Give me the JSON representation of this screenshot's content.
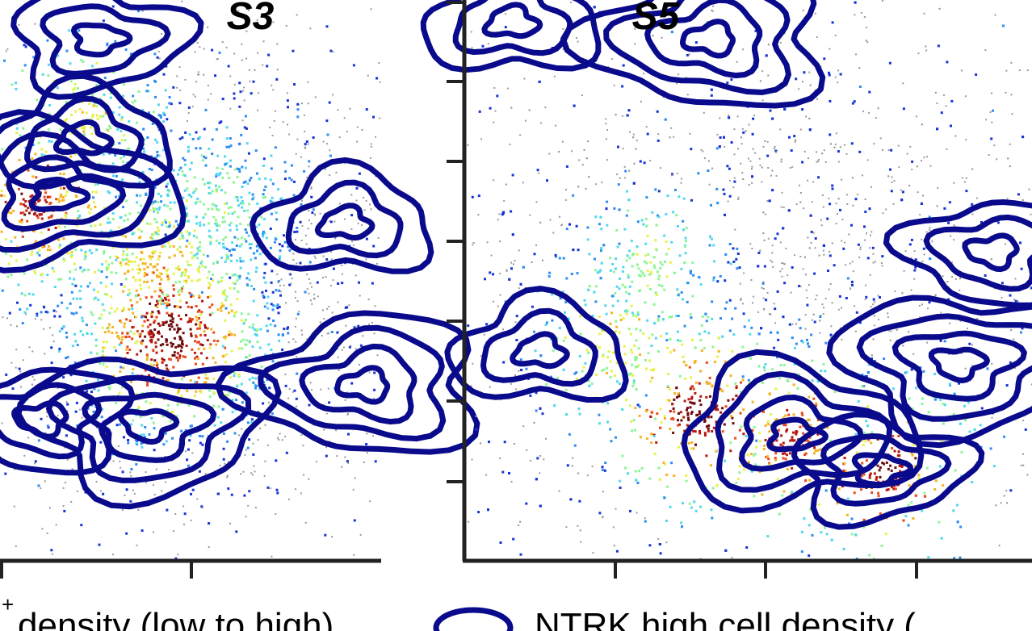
{
  "colors": {
    "background": "#ffffff",
    "axis": "#222222",
    "contour": "#0a0a8c",
    "non_expressing_cells": "#9a9a9a",
    "density_colormap": [
      "#1733d6",
      "#2f8cf0",
      "#52d8ee",
      "#8ef596",
      "#e6f24a",
      "#f5b321",
      "#e94a1b",
      "#b8170f",
      "#6e0b0b"
    ]
  },
  "chart_data": [
    {
      "type": "scatter",
      "title": "S3",
      "subtitle": "",
      "xlabel": "",
      "ylabel": "",
      "grid": false,
      "legend": "bottom",
      "overlay": "kernel density contours",
      "xlim": [
        0,
        10
      ],
      "ylim": [
        0,
        10
      ],
      "density_hotspots": [
        {
          "x": 4.5,
          "y": 4.0,
          "level": 1.0
        },
        {
          "x": 0.9,
          "y": 6.4,
          "level": 0.85
        },
        {
          "x": 2.1,
          "y": 7.9,
          "level": 0.55
        },
        {
          "x": 4.0,
          "y": 5.2,
          "level": 0.6
        },
        {
          "x": 5.6,
          "y": 6.3,
          "level": 0.4
        }
      ],
      "contour_peaks": [
        {
          "x": 2.2,
          "y": 7.5
        },
        {
          "x": 1.5,
          "y": 6.5
        },
        {
          "x": 2.6,
          "y": 9.3
        },
        {
          "x": 3.9,
          "y": 2.4
        },
        {
          "x": 1.1,
          "y": 2.5
        },
        {
          "x": 9.6,
          "y": 3.1
        },
        {
          "x": 9.1,
          "y": 6.0
        }
      ]
    },
    {
      "type": "scatter",
      "title": "S5",
      "subtitle": "",
      "xlabel": "",
      "ylabel": "",
      "grid": false,
      "legend": "bottom",
      "overlay": "kernel density contours",
      "xlim": [
        0,
        10
      ],
      "ylim": [
        0,
        10
      ],
      "density_hotspots": [
        {
          "x": 4.1,
          "y": 2.6,
          "level": 1.0
        },
        {
          "x": 7.4,
          "y": 1.6,
          "level": 0.95
        },
        {
          "x": 5.7,
          "y": 2.1,
          "level": 0.85
        },
        {
          "x": 2.6,
          "y": 3.8,
          "level": 0.55
        },
        {
          "x": 3.2,
          "y": 5.2,
          "level": 0.45
        }
      ],
      "contour_peaks": [
        {
          "x": 0.8,
          "y": 9.6
        },
        {
          "x": 5.8,
          "y": 2.2
        },
        {
          "x": 7.3,
          "y": 1.6
        },
        {
          "x": 8.7,
          "y": 3.5
        },
        {
          "x": 9.3,
          "y": 5.5
        },
        {
          "x": 4.3,
          "y": 9.3
        },
        {
          "x": 1.3,
          "y": 3.7
        }
      ]
    }
  ],
  "legend": {
    "items": [
      {
        "label_prefix": "",
        "superscript": "+",
        "label": "density (low to high)",
        "marker": "colormap"
      },
      {
        "label_prefix": "",
        "superscript": "",
        "label": "NTRK high cell density (",
        "marker": "contour-ellipse"
      }
    ]
  }
}
